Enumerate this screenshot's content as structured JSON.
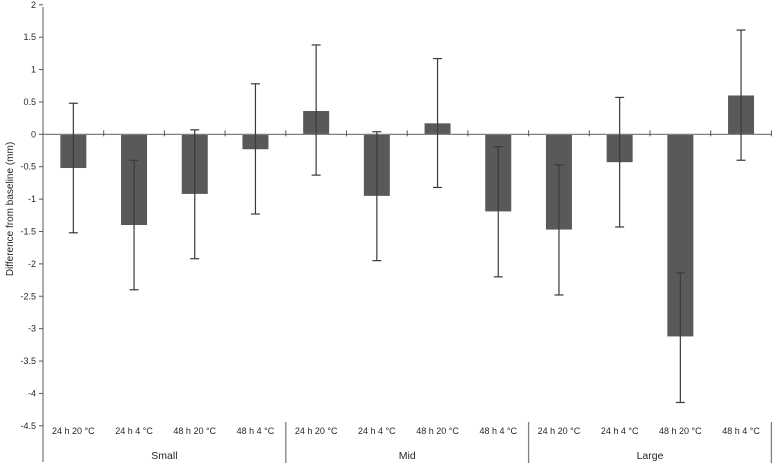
{
  "chart_data": {
    "type": "bar",
    "title": "",
    "xlabel": "",
    "ylabel": "Difference from baseline (mm)",
    "ylim": [
      -4.5,
      2
    ],
    "ytick_step": 0.5,
    "ytick_labels": [
      "2",
      "1.5",
      "1",
      "0.5",
      "0",
      "-0.5",
      "-1",
      "-1.5",
      "-2",
      "-2.5",
      "-3",
      "-3.5",
      "-4",
      "-4.5"
    ],
    "ytick_values": [
      2,
      1.5,
      1,
      0.5,
      0,
      -0.5,
      -1,
      -1.5,
      -2,
      -2.5,
      -3,
      -3.5,
      -4,
      -4.5
    ],
    "grid": false,
    "legend": null,
    "error_bars": true,
    "groups": [
      {
        "label": "Small",
        "bars": [
          {
            "label": "24 h 20 °C",
            "value": -0.52,
            "err_high": 0.48,
            "err_low": -1.52
          },
          {
            "label": "24 h 4 °C",
            "value": -1.4,
            "err_high": -0.4,
            "err_low": -2.4
          },
          {
            "label": "48 h 20 °C",
            "value": -0.92,
            "err_high": 0.07,
            "err_low": -1.92
          },
          {
            "label": "48 h 4 °C",
            "value": -0.23,
            "err_high": 0.78,
            "err_low": -1.23
          }
        ]
      },
      {
        "label": "Mid",
        "bars": [
          {
            "label": "24 h 20 °C",
            "value": 0.36,
            "err_high": 1.38,
            "err_low": -0.63
          },
          {
            "label": "24 h 4 °C",
            "value": -0.95,
            "err_high": 0.04,
            "err_low": -1.95
          },
          {
            "label": "48 h 20 °C",
            "value": 0.17,
            "err_high": 1.17,
            "err_low": -0.82
          },
          {
            "label": "48 h 4 °C",
            "value": -1.19,
            "err_high": -0.19,
            "err_low": -2.2
          }
        ]
      },
      {
        "label": "Large",
        "bars": [
          {
            "label": "24 h 20 °C",
            "value": -1.47,
            "err_high": -0.47,
            "err_low": -2.48
          },
          {
            "label": "24 h 4 °C",
            "value": -0.43,
            "err_high": 0.57,
            "err_low": -1.43
          },
          {
            "label": "48 h 20 °C",
            "value": -3.12,
            "err_high": -2.14,
            "err_low": -4.14
          },
          {
            "label": "48 h 4 °C",
            "value": 0.6,
            "err_high": 1.61,
            "err_low": -0.4
          }
        ]
      }
    ],
    "colors": {
      "bar_fill": "#595959",
      "error_bar": "#3a3a3a",
      "axis_line": "#808080",
      "tick_mark": "#595959",
      "text": "#262626"
    }
  }
}
